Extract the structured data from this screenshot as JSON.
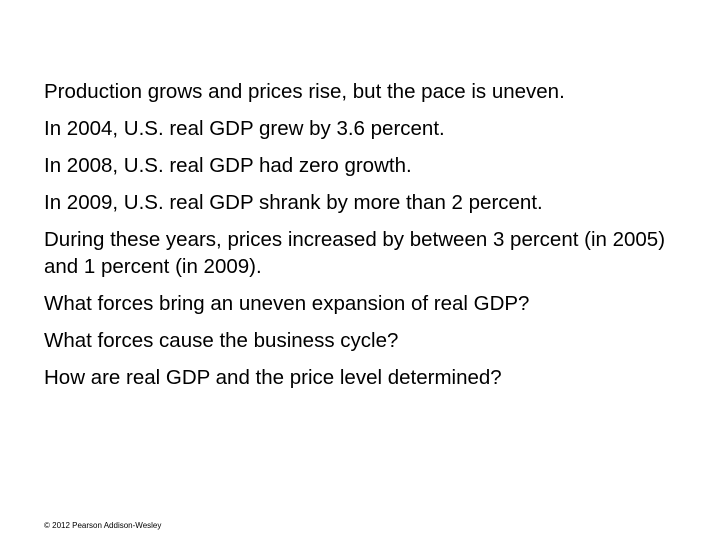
{
  "slide": {
    "paragraphs": [
      "Production grows and prices rise, but the pace is uneven.",
      "In 2004, U.S. real GDP grew by 3.6 percent.",
      "In 2008, U.S. real GDP had zero growth.",
      "In 2009, U.S. real GDP shrank by more than 2 percent.",
      "During these years, prices increased by between 3 percent (in 2005) and 1 percent (in 2009).",
      "What forces bring an uneven expansion of real GDP?",
      "What forces cause the business cycle?",
      "How are real GDP and the price level determined?"
    ],
    "footer": "© 2012 Pearson Addison-Wesley"
  }
}
